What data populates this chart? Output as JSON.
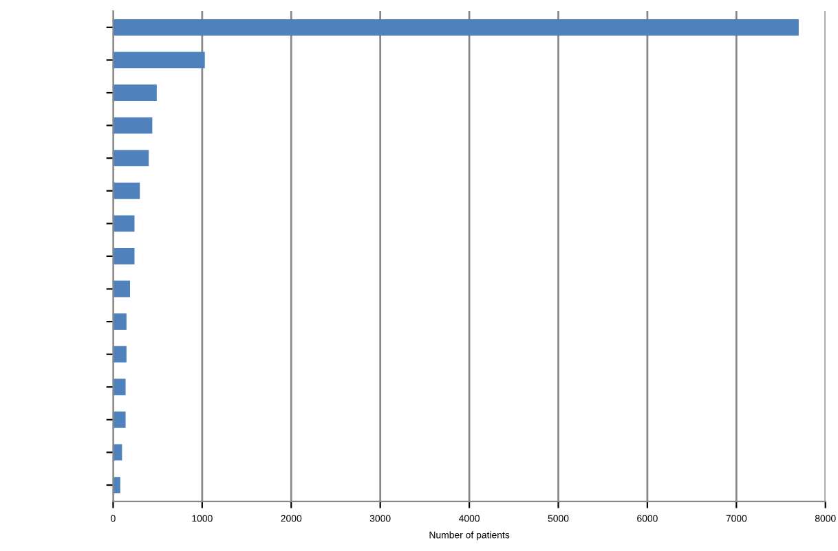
{
  "chart_data": {
    "type": "bar",
    "orientation": "horizontal",
    "xlabel": "Number of patients",
    "categories": [
      null,
      null,
      null,
      null,
      null,
      null,
      null,
      null,
      null,
      null,
      null,
      null,
      null,
      null,
      null
    ],
    "values": [
      7700,
      1030,
      490,
      440,
      400,
      300,
      240,
      240,
      190,
      150,
      150,
      140,
      140,
      100,
      80
    ],
    "color": "#4f81bd",
    "xlim": [
      0,
      8000
    ],
    "xticks": [
      0,
      1000,
      2000,
      3000,
      4000,
      5000,
      6000,
      7000,
      8000
    ],
    "grid": "x"
  }
}
